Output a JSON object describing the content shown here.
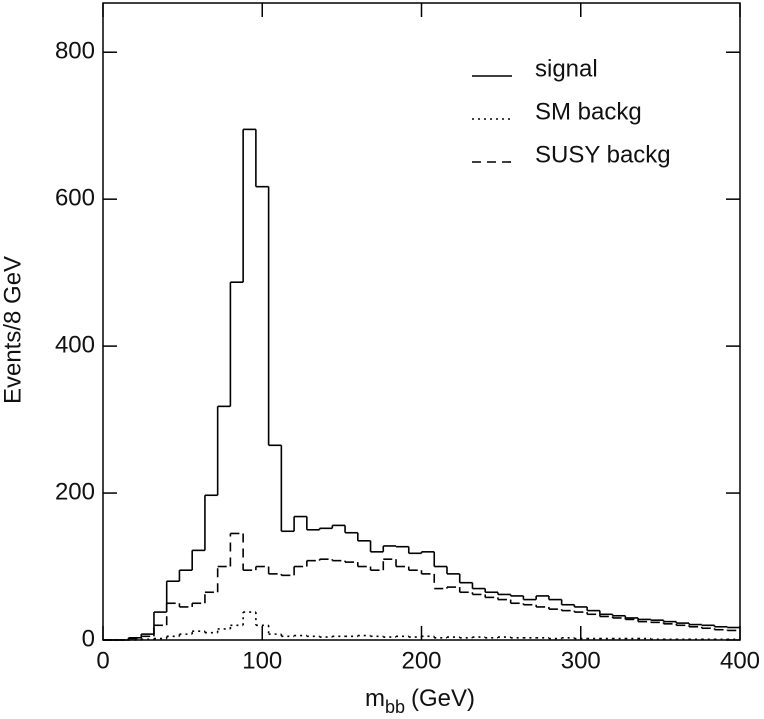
{
  "chart_data": {
    "type": "histogram",
    "y_label": "Events/8 GeV",
    "x_label": "m",
    "x_label_sub": "bb",
    "x_label_unit": "(GeV)",
    "bins": [
      0,
      8,
      16,
      24,
      32,
      40,
      48,
      56,
      64,
      72,
      80,
      88,
      96,
      104,
      112,
      120,
      128,
      136,
      144,
      152,
      160,
      168,
      176,
      184,
      192,
      200,
      208,
      216,
      224,
      232,
      240,
      248,
      256,
      264,
      272,
      280,
      288,
      296,
      304,
      312,
      320,
      328,
      336,
      344,
      352,
      360,
      368,
      376,
      384,
      392,
      400
    ],
    "series": [
      {
        "name": "signal",
        "color": "#000000",
        "dash": "solid",
        "values": [
          0,
          0,
          3,
          8,
          38,
          80,
          95,
          122,
          197,
          318,
          487,
          695,
          617,
          265,
          148,
          168,
          150,
          152,
          156,
          146,
          135,
          120,
          128,
          127,
          118,
          120,
          100,
          90,
          78,
          70,
          65,
          62,
          60,
          55,
          60,
          55,
          48,
          45,
          40,
          35,
          33,
          30,
          28,
          27,
          25,
          23,
          21,
          20,
          18,
          17
        ]
      },
      {
        "name": "SM backg",
        "color": "#000000",
        "dash": "dotted",
        "values": [
          0,
          0,
          0,
          1,
          2,
          5,
          8,
          12,
          10,
          15,
          20,
          38,
          20,
          8,
          5,
          6,
          5,
          4,
          5,
          5,
          6,
          5,
          4,
          5,
          4,
          5,
          3,
          4,
          3,
          4,
          3,
          4,
          3,
          3,
          3,
          2,
          3,
          2,
          2,
          2,
          2,
          2,
          2,
          1,
          1,
          1,
          1,
          1,
          1,
          1
        ]
      },
      {
        "name": "SUSY backg",
        "color": "#000000",
        "dash": "dashed",
        "values": [
          0,
          0,
          2,
          5,
          20,
          50,
          45,
          50,
          65,
          100,
          145,
          95,
          100,
          90,
          88,
          100,
          108,
          110,
          108,
          106,
          100,
          95,
          110,
          100,
          95,
          90,
          70,
          72,
          65,
          62,
          58,
          55,
          50,
          48,
          45,
          42,
          40,
          38,
          35,
          32,
          30,
          28,
          25,
          24,
          22,
          20,
          18,
          16,
          14,
          13
        ]
      }
    ],
    "xlim": [
      0,
      400
    ],
    "xticks": [
      0,
      100,
      200,
      300,
      400
    ],
    "ylim": [
      0,
      867
    ],
    "yticks": [
      0,
      200,
      400,
      600,
      800
    ],
    "legend": "upper right"
  }
}
